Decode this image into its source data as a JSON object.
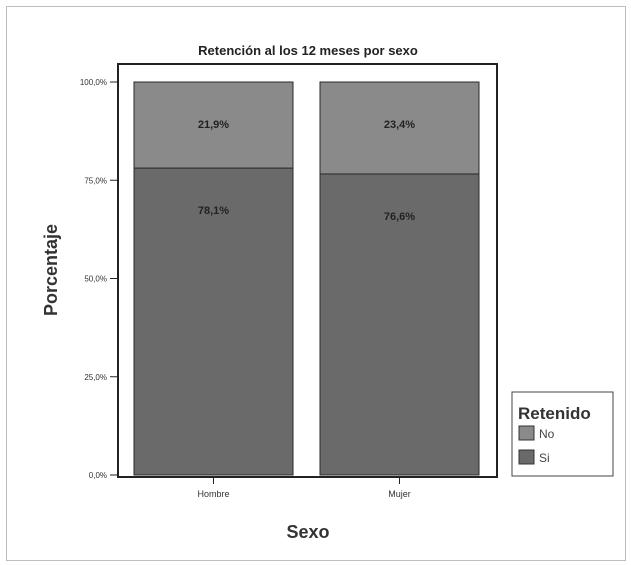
{
  "chart_data": {
    "type": "bar",
    "stacked": true,
    "title": "Retención al los 12 meses por sexo",
    "xlabel": "Sexo",
    "ylabel": "Porcentaje",
    "categories": [
      "Hombre",
      "Mujer"
    ],
    "series": [
      {
        "name": "Si",
        "values": [
          78.1,
          76.6
        ],
        "labels": [
          "78,1%",
          "76,6%"
        ],
        "color": "#6a6a6a"
      },
      {
        "name": "No",
        "values": [
          21.9,
          23.4
        ],
        "labels": [
          "21,9%",
          "23,4%"
        ],
        "color": "#8a8a8a"
      }
    ],
    "ylim": [
      0,
      100
    ],
    "yticks": [
      0,
      25,
      50,
      75,
      100
    ],
    "ytick_labels": [
      "0,0%",
      "25,0%",
      "50,0%",
      "75,0%",
      "100,0%"
    ],
    "grid": false,
    "legend": {
      "title": "Retenido",
      "entries": [
        "No",
        "Si"
      ],
      "position": "right"
    }
  }
}
